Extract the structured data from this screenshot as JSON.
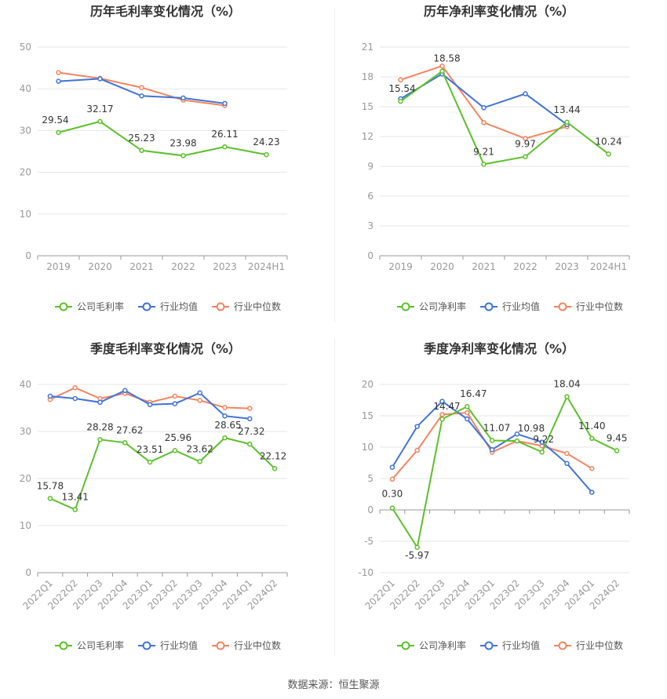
{
  "colors": {
    "company": "#5cc02a",
    "avg": "#3f73d9",
    "median": "#f4845f",
    "grid": "#e6e6e6",
    "axis": "#999999",
    "tick": "#999999",
    "title": "#333333",
    "label": "#333333"
  },
  "source_text": "数据来源：恒生聚源",
  "chart_data": [
    {
      "type": "line",
      "title": "历年毛利率变化情况（%）",
      "categories": [
        "2019",
        "2020",
        "2021",
        "2022",
        "2023",
        "2024H1"
      ],
      "ylim": [
        0,
        50
      ],
      "yticks": [
        0,
        10,
        20,
        30,
        40,
        50
      ],
      "xlabel": "",
      "ylabel": "",
      "grid": true,
      "legend_position": "bottom",
      "rotate_x_labels": false,
      "series": [
        {
          "name": "公司毛利率",
          "key": "company",
          "values": [
            29.54,
            32.17,
            25.23,
            23.98,
            26.11,
            24.23
          ],
          "labels": [
            "29.54",
            "32.17",
            "25.23",
            "23.98",
            "26.11",
            "24.23"
          ]
        },
        {
          "name": "行业均值",
          "key": "avg",
          "values": [
            41.8,
            42.4,
            38.3,
            37.8,
            36.5,
            null
          ]
        },
        {
          "name": "行业中位数",
          "key": "median",
          "values": [
            43.9,
            42.5,
            40.3,
            37.3,
            36.0,
            null
          ]
        }
      ]
    },
    {
      "type": "line",
      "title": "历年净利率变化情况（%）",
      "categories": [
        "2019",
        "2020",
        "2021",
        "2022",
        "2023",
        "2024H1"
      ],
      "ylim": [
        0,
        21
      ],
      "yticks": [
        0,
        3,
        6,
        9,
        12,
        15,
        18,
        21
      ],
      "xlabel": "",
      "ylabel": "",
      "grid": true,
      "legend_position": "bottom",
      "rotate_x_labels": false,
      "series": [
        {
          "name": "公司净利率",
          "key": "company",
          "values": [
            15.54,
            18.58,
            9.21,
            9.97,
            13.44,
            10.24
          ],
          "labels": [
            "15.54",
            "18.58",
            "9.21",
            "9.97",
            "13.44",
            "10.24"
          ]
        },
        {
          "name": "行业均值",
          "key": "avg",
          "values": [
            15.8,
            18.3,
            14.9,
            16.3,
            13.2,
            null
          ]
        },
        {
          "name": "行业中位数",
          "key": "median",
          "values": [
            17.7,
            19.1,
            13.4,
            11.8,
            13.0,
            null
          ]
        }
      ]
    },
    {
      "type": "line",
      "title": "季度毛利率变化情况（%）",
      "categories": [
        "2022Q1",
        "2022Q2",
        "2022Q3",
        "2022Q4",
        "2023Q1",
        "2023Q2",
        "2023Q3",
        "2023Q4",
        "2024Q1",
        "2024Q2"
      ],
      "ylim": [
        0,
        40
      ],
      "yticks": [
        0,
        10,
        20,
        30,
        40
      ],
      "xlabel": "",
      "ylabel": "",
      "grid": true,
      "legend_position": "bottom",
      "rotate_x_labels": true,
      "series": [
        {
          "name": "公司毛利率",
          "key": "company",
          "values": [
            15.78,
            13.41,
            28.28,
            27.62,
            23.51,
            25.96,
            23.62,
            28.65,
            27.32,
            22.12
          ],
          "labels": [
            "15.78",
            "13.41",
            "28.28",
            "27.62",
            "23.51",
            "25.96",
            "23.62",
            "28.65",
            "27.32",
            "22.12"
          ]
        },
        {
          "name": "行业均值",
          "key": "avg",
          "values": [
            37.5,
            37.0,
            36.2,
            38.7,
            35.7,
            35.9,
            38.2,
            33.3,
            32.7,
            null
          ]
        },
        {
          "name": "行业中位数",
          "key": "median",
          "values": [
            36.8,
            39.3,
            37.0,
            38.1,
            36.2,
            37.5,
            36.6,
            35.1,
            34.9,
            null
          ]
        }
      ]
    },
    {
      "type": "line",
      "title": "季度净利率变化情况（%）",
      "categories": [
        "2022Q1",
        "2022Q2",
        "2022Q3",
        "2022Q4",
        "2023Q1",
        "2023Q2",
        "2023Q3",
        "2023Q4",
        "2024Q1",
        "2024Q2"
      ],
      "ylim": [
        -10,
        20
      ],
      "yticks": [
        -10,
        -5,
        0,
        5,
        10,
        15,
        20
      ],
      "xlabel": "",
      "ylabel": "",
      "grid": true,
      "legend_position": "bottom",
      "rotate_x_labels": true,
      "series": [
        {
          "name": "公司净利率",
          "key": "company",
          "values": [
            0.3,
            -5.97,
            14.47,
            16.47,
            11.07,
            10.98,
            9.22,
            18.04,
            11.4,
            9.45
          ],
          "labels": [
            "0.30",
            "-5.97",
            "14.47",
            "16.47",
            "11.07",
            "10.98",
            "9.22",
            "18.04",
            "11.40",
            "9.45"
          ]
        },
        {
          "name": "行业均值",
          "key": "avg",
          "values": [
            6.8,
            13.3,
            17.3,
            14.5,
            9.6,
            12.1,
            10.8,
            7.4,
            2.8,
            null
          ]
        },
        {
          "name": "行业中位数",
          "key": "median",
          "values": [
            4.9,
            9.5,
            15.2,
            15.5,
            9.2,
            11.0,
            10.2,
            9.0,
            6.6,
            null
          ]
        }
      ]
    }
  ]
}
